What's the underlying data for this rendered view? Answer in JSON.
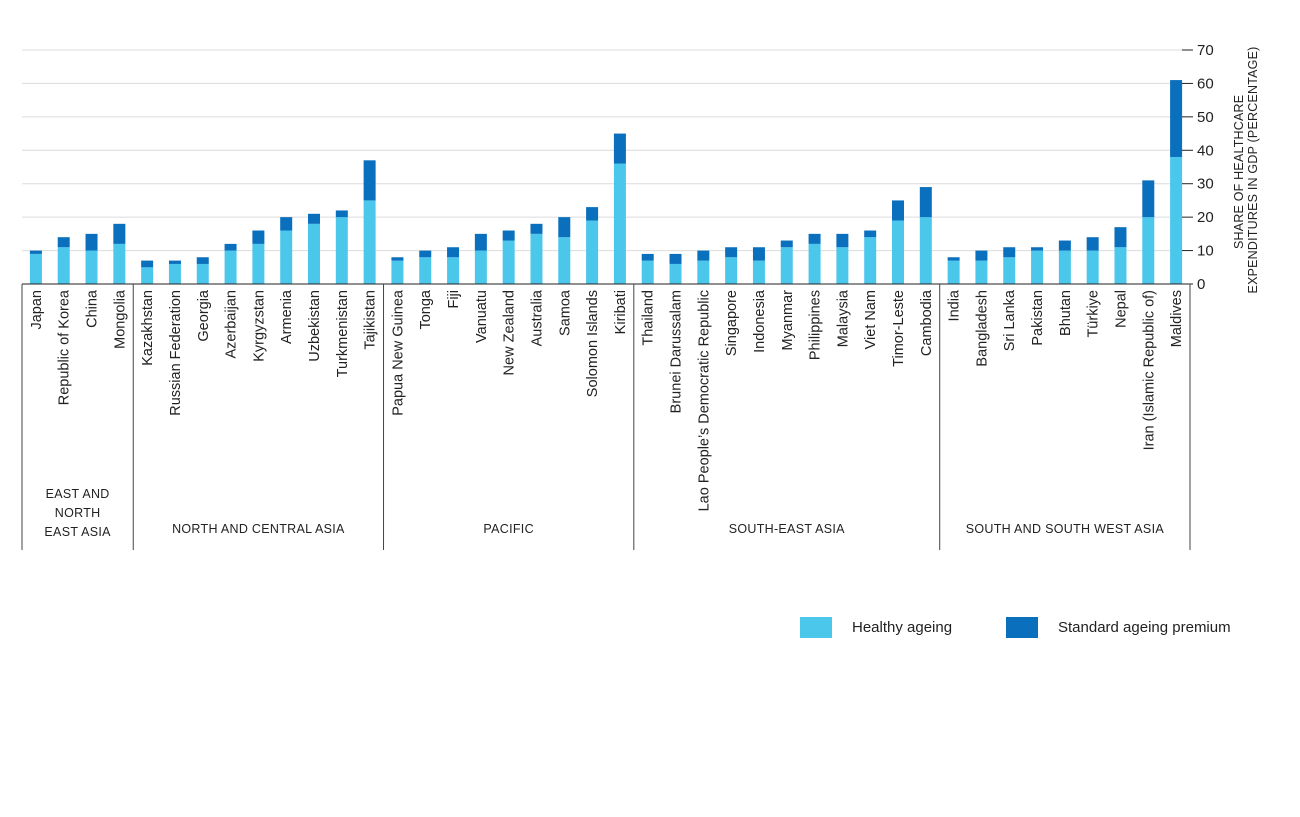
{
  "chart_data": {
    "type": "bar",
    "stacked": true,
    "ylabel_lines": [
      "SHARE OF HEALTHCARE",
      "EXPENDITURES IN GDP (PERCENTAGE)"
    ],
    "ylim": [
      0,
      70
    ],
    "yticks": [
      0,
      10,
      20,
      30,
      40,
      50,
      60,
      70
    ],
    "ytick_labels": [
      "0",
      "10",
      "20",
      "30",
      "40",
      "50",
      "60",
      "70"
    ],
    "grid": true,
    "y_axis_position": "right",
    "legend_position": "bottom-right",
    "categories": [
      "Japan",
      "Republic of Korea",
      "China",
      "Mongolia",
      "Kazakhstan",
      "Russian Federation",
      "Georgia",
      "Azerbaijan",
      "Kyrgyzstan",
      "Armenia",
      "Uzbekistan",
      "Turkmenistan",
      "Tajikistan",
      "Papua New Guinea",
      "Tonga",
      "Fiji",
      "Vanuatu",
      "New Zealand",
      "Australia",
      "Samoa",
      "Solomon Islands",
      "Kiribati",
      "Thailand",
      "Brunei Darussalam",
      "Lao People’s Democratic Republic",
      "Singapore",
      "Indonesia",
      "Myanmar",
      "Philippines",
      "Malaysia",
      "Viet Nam",
      "Timor-Leste",
      "Cambodia",
      "India",
      "Bangladesh",
      "Sri Lanka",
      "Pakistan",
      "Bhutan",
      "Türkiye",
      "Nepal",
      "Iran (Islamic Republic of)",
      "Maldives"
    ],
    "groups": [
      {
        "name_lines": [
          "EAST AND",
          "NORTH",
          "EAST ASIA"
        ],
        "count": 4
      },
      {
        "name_lines": [
          "NORTH AND CENTRAL ASIA"
        ],
        "count": 9
      },
      {
        "name_lines": [
          "PACIFIC"
        ],
        "count": 9
      },
      {
        "name_lines": [
          "SOUTH-EAST ASIA"
        ],
        "count": 11
      },
      {
        "name_lines": [
          "SOUTH AND SOUTH WEST ASIA"
        ],
        "count": 9
      }
    ],
    "series": [
      {
        "name": "Healthy ageing",
        "color": "#4cc7ec",
        "values": [
          9,
          11,
          10,
          12,
          5,
          6,
          6,
          10,
          12,
          16,
          18,
          20,
          25,
          7,
          8,
          8,
          10,
          13,
          15,
          14,
          19,
          36,
          7,
          6,
          7,
          8,
          7,
          11,
          12,
          11,
          14,
          19,
          20,
          7,
          7,
          8,
          10,
          10,
          10,
          11,
          20,
          38
        ]
      },
      {
        "name": "Standard ageing premium",
        "color": "#0a6fbd",
        "values": [
          1,
          3,
          5,
          6,
          2,
          1,
          2,
          2,
          4,
          4,
          3,
          2,
          12,
          1,
          2,
          3,
          5,
          3,
          3,
          6,
          4,
          9,
          2,
          3,
          3,
          3,
          4,
          2,
          3,
          4,
          2,
          6,
          9,
          1,
          3,
          3,
          1,
          3,
          4,
          6,
          11,
          23
        ]
      }
    ]
  }
}
